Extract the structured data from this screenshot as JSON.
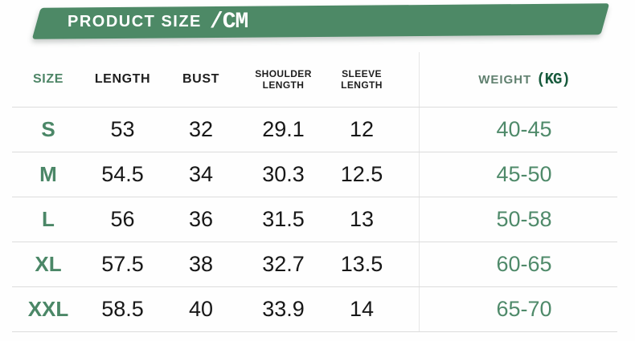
{
  "banner": {
    "title": "PRODUCT SIZE",
    "unit": "/CM"
  },
  "colors": {
    "banner_green": "#4d8966",
    "accent_green": "#4b8767",
    "dark_green": "#175a3c",
    "muted_green": "#60806f",
    "text_black": "#171717",
    "divider_gray": "#dcdcdc"
  },
  "table": {
    "headers": [
      {
        "id": "size",
        "label": "SIZE"
      },
      {
        "id": "length",
        "label": "LENGTH"
      },
      {
        "id": "bust",
        "label": "BUST"
      },
      {
        "id": "shoulder_length",
        "label": "SHOULDER LENGTH"
      },
      {
        "id": "sleeve_length",
        "label": "SLEEVE LENGTH"
      },
      {
        "id": "weight",
        "label": "WEIGHT",
        "unit": "(KG)"
      }
    ],
    "rows": [
      {
        "size": "S",
        "length": "53",
        "bust": "32",
        "shoulder_length": "29.1",
        "sleeve_length": "12",
        "weight": "40-45"
      },
      {
        "size": "M",
        "length": "54.5",
        "bust": "34",
        "shoulder_length": "30.3",
        "sleeve_length": "12.5",
        "weight": "45-50"
      },
      {
        "size": "L",
        "length": "56",
        "bust": "36",
        "shoulder_length": "31.5",
        "sleeve_length": "13",
        "weight": "50-58"
      },
      {
        "size": "XL",
        "length": "57.5",
        "bust": "38",
        "shoulder_length": "32.7",
        "sleeve_length": "13.5",
        "weight": "60-65"
      },
      {
        "size": "XXL",
        "length": "58.5",
        "bust": "40",
        "shoulder_length": "33.9",
        "sleeve_length": "14",
        "weight": "65-70"
      }
    ]
  }
}
